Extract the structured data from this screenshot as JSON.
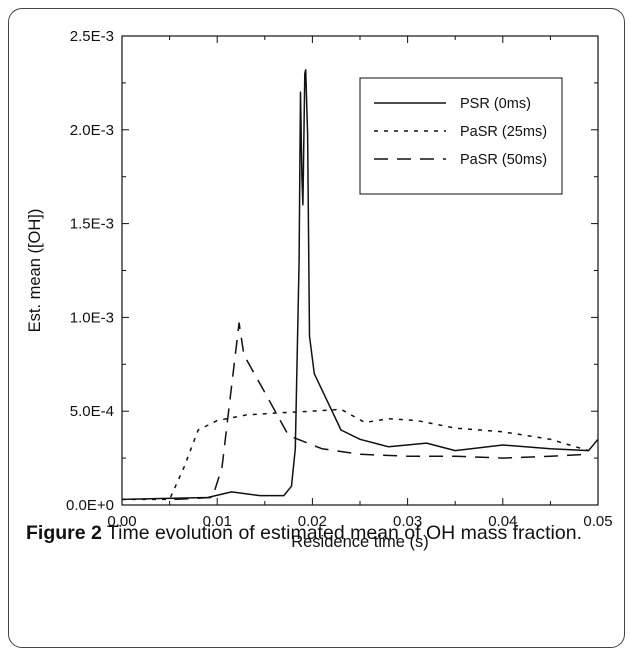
{
  "figure": {
    "label": "Figure 2",
    "text": "Time evolution of estimated mean of OH mass fraction."
  },
  "chart_data": {
    "type": "line",
    "xlabel": "Residence time (s)",
    "ylabel": "Est. mean ([OH])",
    "xlim": [
      0,
      0.05
    ],
    "ylim": [
      0,
      0.0025
    ],
    "xticks": [
      0,
      0.01,
      0.02,
      0.03,
      0.04,
      0.05
    ],
    "xtick_labels": [
      "0.00",
      "0.01",
      "0.02",
      "0.03",
      "0.04",
      "0.05"
    ],
    "yticks": [
      0,
      0.0005,
      0.001,
      0.0015,
      0.002,
      0.0025
    ],
    "ytick_labels": [
      "0.0E+0",
      "5.0E-4",
      "1.0E-3",
      "1.5E-3",
      "2.0E-3",
      "2.5E-3"
    ],
    "grid": false,
    "legend_position": "top-right",
    "series": [
      {
        "name": "PSR (0ms)",
        "dash": "solid",
        "color": "#111111",
        "points": [
          [
            0.0,
            3e-05
          ],
          [
            0.009,
            4e-05
          ],
          [
            0.0115,
            7e-05
          ],
          [
            0.0145,
            5e-05
          ],
          [
            0.017,
            5e-05
          ],
          [
            0.0178,
            0.0001
          ],
          [
            0.0182,
            0.0003
          ],
          [
            0.0184,
            0.0008
          ],
          [
            0.0186,
            0.0013
          ],
          [
            0.0187,
            0.0019
          ],
          [
            0.01875,
            0.0022
          ],
          [
            0.0189,
            0.00175
          ],
          [
            0.019,
            0.0016
          ],
          [
            0.0192,
            0.0023
          ],
          [
            0.0193,
            0.00232
          ],
          [
            0.0195,
            0.00198
          ],
          [
            0.0197,
            0.0009
          ],
          [
            0.0202,
            0.0007
          ],
          [
            0.023,
            0.0004
          ],
          [
            0.025,
            0.00035
          ],
          [
            0.028,
            0.00031
          ],
          [
            0.032,
            0.00033
          ],
          [
            0.035,
            0.00029
          ],
          [
            0.04,
            0.00032
          ],
          [
            0.045,
            0.0003
          ],
          [
            0.049,
            0.00029
          ],
          [
            0.05,
            0.00035
          ]
        ]
      },
      {
        "name": "PaSR (25ms)",
        "dash": "short",
        "color": "#111111",
        "points": [
          [
            0.0,
            3e-05
          ],
          [
            0.005,
            3e-05
          ],
          [
            0.0065,
            0.0002
          ],
          [
            0.008,
            0.0004
          ],
          [
            0.01,
            0.00045
          ],
          [
            0.013,
            0.00048
          ],
          [
            0.016,
            0.00049
          ],
          [
            0.02,
            0.0005
          ],
          [
            0.023,
            0.00051
          ],
          [
            0.0255,
            0.00044
          ],
          [
            0.028,
            0.00046
          ],
          [
            0.031,
            0.00045
          ],
          [
            0.035,
            0.00041
          ],
          [
            0.04,
            0.00039
          ],
          [
            0.045,
            0.00035
          ],
          [
            0.049,
            0.00029
          ]
        ]
      },
      {
        "name": "PaSR (50ms)",
        "dash": "long",
        "color": "#111111",
        "points": [
          [
            0.0055,
            3e-05
          ],
          [
            0.0095,
            4e-05
          ],
          [
            0.0105,
            0.0002
          ],
          [
            0.0112,
            0.0005
          ],
          [
            0.0123,
            0.00097
          ],
          [
            0.0128,
            0.0008
          ],
          [
            0.015,
            0.0006
          ],
          [
            0.0175,
            0.00037
          ],
          [
            0.021,
            0.0003
          ],
          [
            0.025,
            0.00027
          ],
          [
            0.03,
            0.00026
          ],
          [
            0.035,
            0.00026
          ],
          [
            0.04,
            0.00025
          ],
          [
            0.045,
            0.00026
          ],
          [
            0.049,
            0.00027
          ]
        ]
      }
    ]
  }
}
